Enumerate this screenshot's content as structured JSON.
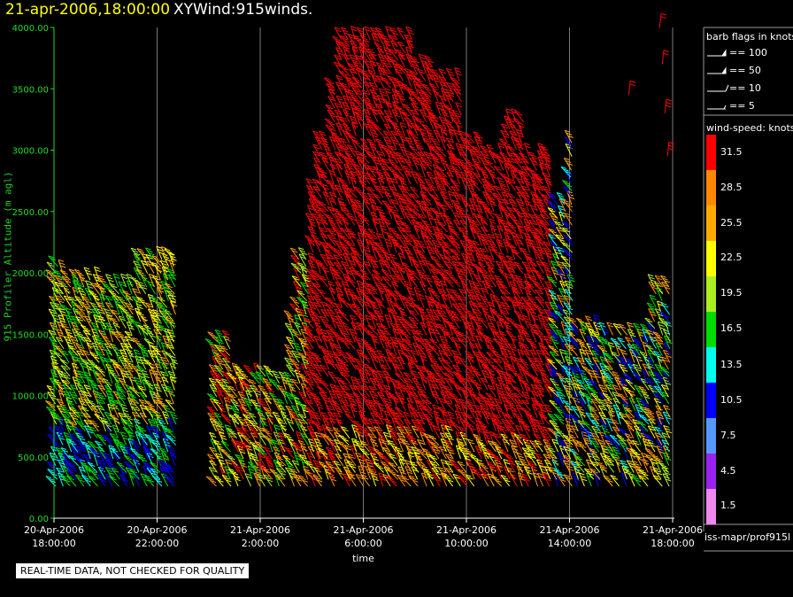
{
  "header": {
    "date": "21-apr-2006,18:00:00",
    "name": "XYWind:915winds."
  },
  "quality_note": "REAL-TIME DATA, NOT CHECKED FOR QUALITY",
  "source_label": "iss-mapr/prof915l",
  "barb_panel": {
    "title": "barb flags in knots",
    "entries": [
      {
        "label": "== 100",
        "icon": "pennant-flag"
      },
      {
        "label": "== 50",
        "icon": "pennant-flag"
      },
      {
        "label": "== 10",
        "icon": "full-barb"
      },
      {
        "label": "== 5",
        "icon": "half-barb"
      }
    ]
  },
  "speed_panel": {
    "title": "wind-speed: knots",
    "levels": [
      {
        "label": "31.5",
        "color": "#ff0000"
      },
      {
        "label": "28.5",
        "color": "#ff8800"
      },
      {
        "label": "25.5",
        "color": "#ffaa00"
      },
      {
        "label": "22.5",
        "color": "#ffff00"
      },
      {
        "label": "19.5",
        "color": "#aaee22"
      },
      {
        "label": "16.5",
        "color": "#00dd00"
      },
      {
        "label": "13.5",
        "color": "#00ffee"
      },
      {
        "label": "10.5",
        "color": "#0000ff"
      },
      {
        "label": "7.5",
        "color": "#5599ff"
      },
      {
        "label": "4.5",
        "color": "#9922ee"
      },
      {
        "label": "1.5",
        "color": "#ee88ee"
      }
    ]
  },
  "chart_data": {
    "type": "wind-barb time-height plot",
    "xlabel": "time",
    "ylabel": "915 Profiler Altitude (m agl)",
    "ylim": [
      0,
      4000
    ],
    "y_ticks": [
      "0.00",
      "500.00",
      "1000.00",
      "1500.00",
      "2000.00",
      "2500.00",
      "3000.00",
      "3500.00",
      "4000.00"
    ],
    "x_range_hours": [
      0,
      24
    ],
    "x_ticks": [
      {
        "hour": 0,
        "line1": "20-Apr-2006",
        "line2": "18:00:00"
      },
      {
        "hour": 4,
        "line1": "20-Apr-2006",
        "line2": "22:00:00"
      },
      {
        "hour": 8,
        "line1": "21-Apr-2006",
        "line2": "2:00:00"
      },
      {
        "hour": 12,
        "line1": "21-Apr-2006",
        "line2": "6:00:00"
      },
      {
        "hour": 16,
        "line1": "21-Apr-2006",
        "line2": "10:00:00"
      },
      {
        "hour": 20,
        "line1": "21-Apr-2006",
        "line2": "14:00:00"
      },
      {
        "hour": 24,
        "line1": "21-Apr-2006",
        "line2": "18:00:00"
      }
    ],
    "grid": "vertical lines at time ticks",
    "profile_tops_m": [
      {
        "from": 0.0,
        "to": 0.6,
        "top": 2100
      },
      {
        "from": 0.6,
        "to": 1.8,
        "top": 1950
      },
      {
        "from": 1.8,
        "to": 3.3,
        "top": 1900
      },
      {
        "from": 3.3,
        "to": 4.9,
        "top": 2150
      },
      {
        "from": 6.2,
        "to": 6.9,
        "top": 1450
      },
      {
        "from": 6.9,
        "to": 8.6,
        "top": 1200
      },
      {
        "from": 8.6,
        "to": 9.1,
        "top": 1150
      },
      {
        "from": 9.1,
        "to": 9.5,
        "top": 1650
      },
      {
        "from": 9.5,
        "to": 9.9,
        "top": 2150
      },
      {
        "from": 9.9,
        "to": 10.3,
        "top": 2700
      },
      {
        "from": 10.3,
        "to": 10.7,
        "top": 3100
      },
      {
        "from": 10.7,
        "to": 11.0,
        "top": 3600
      },
      {
        "from": 11.0,
        "to": 13.9,
        "top": 3950
      },
      {
        "from": 13.9,
        "to": 14.8,
        "top": 3700
      },
      {
        "from": 14.8,
        "to": 15.9,
        "top": 3600
      },
      {
        "from": 15.9,
        "to": 16.6,
        "top": 3100
      },
      {
        "from": 16.6,
        "to": 17.5,
        "top": 3000
      },
      {
        "from": 17.5,
        "to": 18.4,
        "top": 3250
      },
      {
        "from": 18.4,
        "to": 19.3,
        "top": 3000
      },
      {
        "from": 19.3,
        "to": 19.9,
        "top": 2600
      },
      {
        "from": 19.9,
        "to": 20.3,
        "top": 3100
      },
      {
        "from": 20.3,
        "to": 21.4,
        "top": 1550
      },
      {
        "from": 21.4,
        "to": 23.2,
        "top": 1500
      },
      {
        "from": 23.2,
        "to": 24.0,
        "top": 1900
      }
    ],
    "profile_base_m": 260,
    "speed_regimes": [
      {
        "from": 0.0,
        "to": 5.0,
        "colors": [
          "#ffaa00",
          "#ffff00",
          "#aaee22",
          "#00dd00",
          "#00ffee",
          "#0000ff"
        ]
      },
      {
        "from": 6.0,
        "to": 10.0,
        "colors": [
          "#ff0000",
          "#ff8800",
          "#ffaa00",
          "#ffff00",
          "#aaee22",
          "#00dd00"
        ]
      },
      {
        "from": 10.0,
        "to": 19.5,
        "colors": [
          "#ff0000",
          "#ff0000",
          "#ff0000",
          "#ff8800",
          "#ffaa00",
          "#ffff00"
        ]
      },
      {
        "from": 19.5,
        "to": 24.0,
        "colors": [
          "#ff8800",
          "#ffaa00",
          "#ffff00",
          "#aaee22",
          "#00dd00",
          "#00ffee",
          "#0000ff"
        ]
      }
    ],
    "isolated_high_gates": [
      {
        "hour": 22.3,
        "height_m": 3450
      },
      {
        "hour": 23.5,
        "height_m": 4000
      },
      {
        "hour": 23.6,
        "height_m": 3700
      },
      {
        "hour": 23.7,
        "height_m": 3300
      },
      {
        "hour": 23.8,
        "height_m": 2950
      }
    ]
  }
}
